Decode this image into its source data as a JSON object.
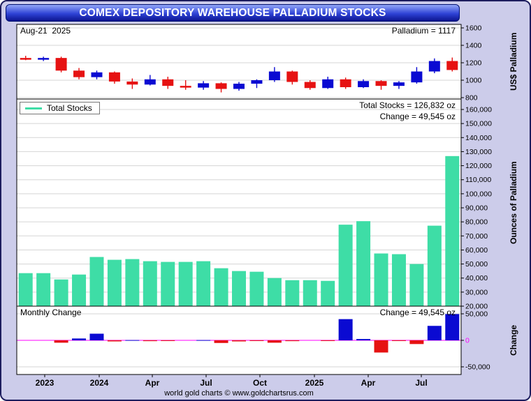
{
  "title": "COMEX DEPOSITORY WAREHOUSE PALLADIUM STOCKS",
  "footer": "world gold charts © www.goldchartsrus.com",
  "xaxis_labels": [
    "2023",
    "2024",
    "Apr",
    "Jul",
    "Oct",
    "2025",
    "Apr",
    "Jul"
  ],
  "colors": {
    "background": "#ccccea",
    "panel": "#ffffff",
    "grid": "#d5d5d5",
    "zero_line": "#ff00ff",
    "candle_up": "#0a0ad2",
    "candle_down": "#e61212",
    "stocks_bar": "#3edda6",
    "title_text": "#ffffff"
  },
  "chart_data": [
    {
      "type": "candlestick",
      "panel": "price",
      "date_label": "Aug-21  2025",
      "value_label": "Palladium = 1117",
      "ylabel": "US$ Palladium",
      "ylim": [
        800,
        1600
      ],
      "yticks": [
        "1600",
        "1400",
        "1200",
        "1000",
        "800"
      ],
      "up_color": "#0a0ad2",
      "down_color": "#e61212",
      "categories": [
        "Aug-2023",
        "Sep-2023",
        "Oct-2023",
        "Nov-2023",
        "Dec-2023",
        "Jan-2024",
        "Feb-2024",
        "Mar-2024",
        "Apr-2024",
        "May-2024",
        "Jun-2024",
        "Jul-2024",
        "Aug-2024",
        "Sep-2024",
        "Oct-2024",
        "Nov-2024",
        "Dec-2024",
        "Jan-2025",
        "Feb-2025",
        "Mar-2025",
        "Apr-2025",
        "May-2025",
        "Jun-2025",
        "Jul-2025",
        "Aug-2025"
      ],
      "ohlc": [
        [
          1255,
          1280,
          1230,
          1235
        ],
        [
          1235,
          1270,
          1220,
          1255
        ],
        [
          1255,
          1270,
          1090,
          1110
        ],
        [
          1110,
          1140,
          1010,
          1035
        ],
        [
          1035,
          1110,
          1010,
          1090
        ],
        [
          1090,
          1100,
          960,
          985
        ],
        [
          985,
          1020,
          900,
          950
        ],
        [
          950,
          1060,
          940,
          1010
        ],
        [
          1010,
          1040,
          900,
          935
        ],
        [
          935,
          1000,
          890,
          915
        ],
        [
          915,
          990,
          890,
          965
        ],
        [
          965,
          975,
          860,
          900
        ],
        [
          900,
          980,
          880,
          960
        ],
        [
          960,
          1010,
          910,
          1000
        ],
        [
          1000,
          1150,
          980,
          1100
        ],
        [
          1100,
          1110,
          950,
          980
        ],
        [
          980,
          1000,
          890,
          910
        ],
        [
          910,
          1040,
          900,
          1010
        ],
        [
          1010,
          1030,
          900,
          920
        ],
        [
          920,
          1010,
          910,
          990
        ],
        [
          990,
          1000,
          890,
          935
        ],
        [
          935,
          990,
          900,
          975
        ],
        [
          975,
          1150,
          960,
          1100
        ],
        [
          1100,
          1250,
          1080,
          1220
        ],
        [
          1220,
          1260,
          1100,
          1117
        ]
      ]
    },
    {
      "type": "bar",
      "panel": "total_stocks",
      "legend": "Total Stocks",
      "total_label": "Total Stocks = 126,832 oz",
      "change_label": "Change = 49,545 oz",
      "ylabel": "Ounces of Palladium",
      "ylim": [
        20000,
        160000
      ],
      "yticks": [
        "20,000",
        "30,000",
        "40,000",
        "50,000",
        "60,000",
        "70,000",
        "80,000",
        "90,000",
        "100,000",
        "110,000",
        "120,000",
        "130,000",
        "140,000",
        "150,000",
        "160,000"
      ],
      "color": "#3edda6",
      "categories": [
        "Aug-2023",
        "Sep-2023",
        "Oct-2023",
        "Nov-2023",
        "Dec-2023",
        "Jan-2024",
        "Feb-2024",
        "Mar-2024",
        "Apr-2024",
        "May-2024",
        "Jun-2024",
        "Jul-2024",
        "Aug-2024",
        "Sep-2024",
        "Oct-2024",
        "Nov-2024",
        "Dec-2024",
        "Jan-2025",
        "Feb-2025",
        "Mar-2025",
        "Apr-2025",
        "May-2025",
        "Jun-2025",
        "Jul-2025",
        "Aug-2025"
      ],
      "values": [
        43500,
        43500,
        39000,
        42500,
        55000,
        53000,
        53500,
        52000,
        51500,
        51500,
        52000,
        47000,
        45000,
        44500,
        40000,
        38500,
        38500,
        38000,
        78000,
        80500,
        57500,
        57000,
        50000,
        77287,
        126832
      ]
    },
    {
      "type": "bar",
      "panel": "monthly_change",
      "title": "Monthly Change",
      "value_label": "Change = 49,545 oz",
      "ylabel": "Change",
      "ylim": [
        -50000,
        50000
      ],
      "yticks": [
        "50,000",
        "0",
        "-50,000"
      ],
      "positive_color": "#0a0ad2",
      "negative_color": "#e61212",
      "zero_line_color": "#ff00ff",
      "categories": [
        "Aug-2023",
        "Sep-2023",
        "Oct-2023",
        "Nov-2023",
        "Dec-2023",
        "Jan-2024",
        "Feb-2024",
        "Mar-2024",
        "Apr-2024",
        "May-2024",
        "Jun-2024",
        "Jul-2024",
        "Aug-2024",
        "Sep-2024",
        "Oct-2024",
        "Nov-2024",
        "Dec-2024",
        "Jan-2025",
        "Feb-2025",
        "Mar-2025",
        "Apr-2025",
        "May-2025",
        "Jun-2025",
        "Jul-2025",
        "Aug-2025"
      ],
      "values": [
        0,
        0,
        -4500,
        3500,
        12500,
        -2000,
        500,
        -1500,
        -500,
        0,
        500,
        -5000,
        -2000,
        -500,
        -4500,
        -1500,
        0,
        -500,
        40000,
        2500,
        -23000,
        -500,
        -7000,
        27287,
        49545
      ]
    }
  ]
}
